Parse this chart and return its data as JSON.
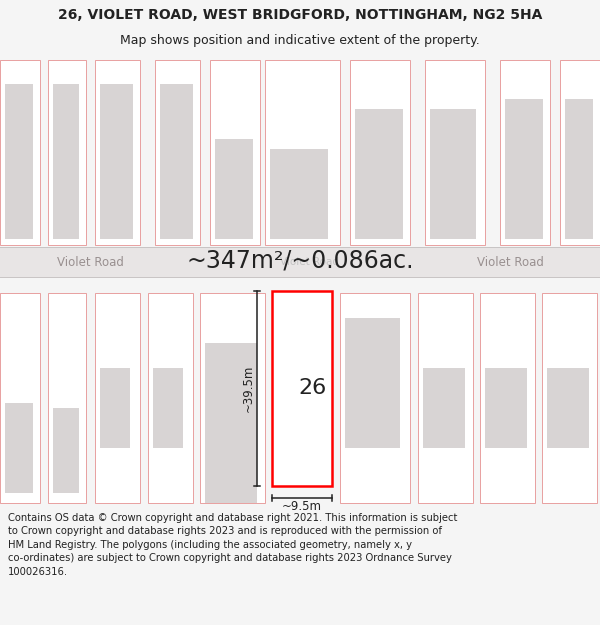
{
  "title": "26, VIOLET ROAD, WEST BRIDGFORD, NOTTINGHAM, NG2 5HA",
  "subtitle": "Map shows position and indicative extent of the property.",
  "area_text": "~347m²/~0.086ac.",
  "dim_vertical": "~39.5m",
  "dim_horizontal": "~9.5m",
  "property_number": "26",
  "road_label": "Violet Road",
  "footer_lines": [
    "Contains OS data © Crown copyright and database right 2021. This information is subject",
    "to Crown copyright and database rights 2023 and is reproduced with the permission of",
    "HM Land Registry. The polygons (including the associated geometry, namely x, y",
    "co-ordinates) are subject to Crown copyright and database rights 2023 Ordnance Survey",
    "100026316."
  ],
  "bg_color": "#f5f5f5",
  "map_bg": "#f0eeee",
  "road_fill": "#e8e5e5",
  "road_line": "#c8c4c4",
  "lot_fill": "#ffffff",
  "lot_edge": "#e8a0a0",
  "building_fill": "#d8d4d4",
  "highlight_edge": "#ff0000",
  "highlight_fill": "#ffffff",
  "dim_color": "#222222",
  "text_color": "#222222",
  "road_text_color": "#999090",
  "title_fontsize": 10,
  "subtitle_fontsize": 9,
  "area_fontsize": 17,
  "road_label_fontsize": 8.5,
  "prop_num_fontsize": 16,
  "dim_fontsize": 8.5,
  "footer_fontsize": 7.2
}
